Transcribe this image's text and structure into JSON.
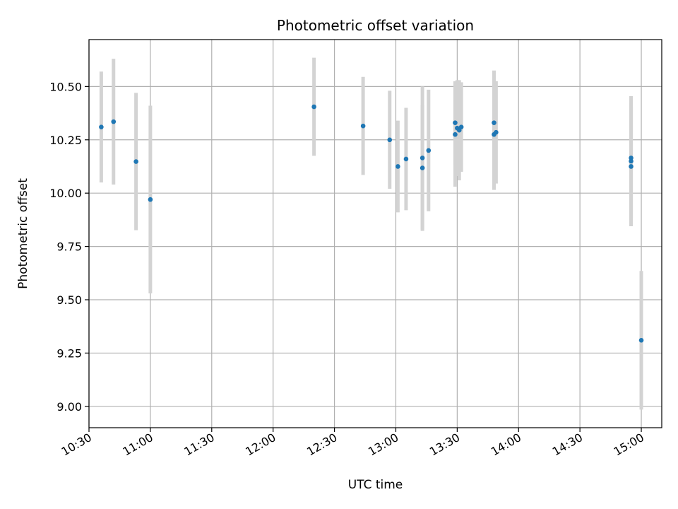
{
  "chart_data": {
    "type": "scatter",
    "title": "Photometric offset variation",
    "xlabel": "UTC time",
    "ylabel": "Photometric offset",
    "grid": true,
    "xlim_min": [
      630,
      910
    ],
    "ylim": [
      8.9,
      10.72
    ],
    "x_tick_values_min": [
      630,
      660,
      690,
      720,
      750,
      780,
      810,
      840,
      870,
      900
    ],
    "x_tick_labels": [
      "10:30",
      "11:00",
      "11:30",
      "12:00",
      "12:30",
      "13:00",
      "13:30",
      "14:00",
      "14:30",
      "15:00"
    ],
    "y_tick_values": [
      9.0,
      9.25,
      9.5,
      9.75,
      10.0,
      10.25,
      10.5
    ],
    "y_tick_labels": [
      "9.00",
      "9.25",
      "9.50",
      "9.75",
      "10.00",
      "10.25",
      "10.50"
    ],
    "errorbar_color": "#d3d3d3",
    "marker_color": "#1f77b4",
    "points": [
      {
        "t": "10:36",
        "y": 10.31,
        "err": 0.26
      },
      {
        "t": "10:42",
        "y": 10.335,
        "err": 0.295
      },
      {
        "t": "10:53",
        "y": 10.148,
        "err": 0.322
      },
      {
        "t": "11:00",
        "y": 9.97,
        "err": 0.44
      },
      {
        "t": "12:20",
        "y": 10.405,
        "err": 0.23
      },
      {
        "t": "12:44",
        "y": 10.315,
        "err": 0.23
      },
      {
        "t": "12:57",
        "y": 10.25,
        "err": 0.23
      },
      {
        "t": "13:01",
        "y": 10.125,
        "err": 0.215
      },
      {
        "t": "13:05",
        "y": 10.16,
        "err": 0.24
      },
      {
        "t": "13:13",
        "y": 10.165,
        "err": 0.335
      },
      {
        "t": "13:13",
        "y": 10.118,
        "err": 0.295
      },
      {
        "t": "13:16",
        "y": 10.2,
        "err": 0.285
      },
      {
        "t": "13:29",
        "y": 10.275,
        "err": 0.245
      },
      {
        "t": "13:29",
        "y": 10.33,
        "err": 0.195
      },
      {
        "t": "13:30",
        "y": 10.305,
        "err": 0.225
      },
      {
        "t": "13:31",
        "y": 10.295,
        "err": 0.235
      },
      {
        "t": "13:32",
        "y": 10.31,
        "err": 0.21
      },
      {
        "t": "13:48",
        "y": 10.33,
        "err": 0.245
      },
      {
        "t": "13:48",
        "y": 10.275,
        "err": 0.26
      },
      {
        "t": "13:49",
        "y": 10.285,
        "err": 0.24
      },
      {
        "t": "14:55",
        "y": 10.165,
        "err": 0.29
      },
      {
        "t": "14:55",
        "y": 10.15,
        "err": 0.27
      },
      {
        "t": "14:55",
        "y": 10.125,
        "err": 0.28
      },
      {
        "t": "15:00",
        "y": 9.31,
        "err": 0.325
      }
    ]
  }
}
